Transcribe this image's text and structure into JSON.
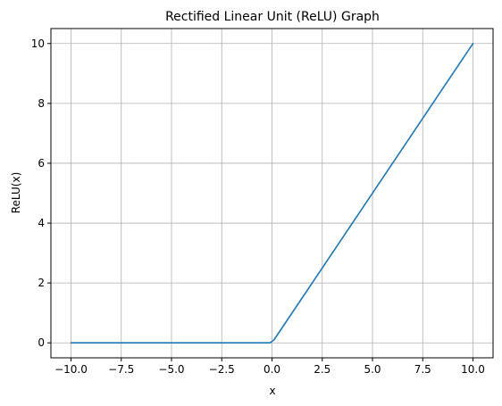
{
  "chart_data": {
    "type": "line",
    "title": "Rectified Linear Unit (ReLU) Graph",
    "xlabel": "x",
    "ylabel": "ReLU(x)",
    "xlim": [
      -11,
      11
    ],
    "ylim": [
      -0.5,
      10.5
    ],
    "grid": true,
    "x_ticks": [
      -10.0,
      -7.5,
      -5.0,
      -2.5,
      0.0,
      2.5,
      5.0,
      7.5,
      10.0
    ],
    "x_tick_labels": [
      "−10.0",
      "−7.5",
      "−5.0",
      "−2.5",
      "0.0",
      "2.5",
      "5.0",
      "7.5",
      "10.0"
    ],
    "y_ticks": [
      0,
      2,
      4,
      6,
      8,
      10
    ],
    "y_tick_labels": [
      "0",
      "2",
      "4",
      "6",
      "8",
      "10"
    ],
    "series": [
      {
        "color": "#1f77b4",
        "x": [
          -10,
          -0.1,
          0.1,
          10
        ],
        "y": [
          0,
          0,
          0.1,
          10
        ]
      }
    ]
  }
}
